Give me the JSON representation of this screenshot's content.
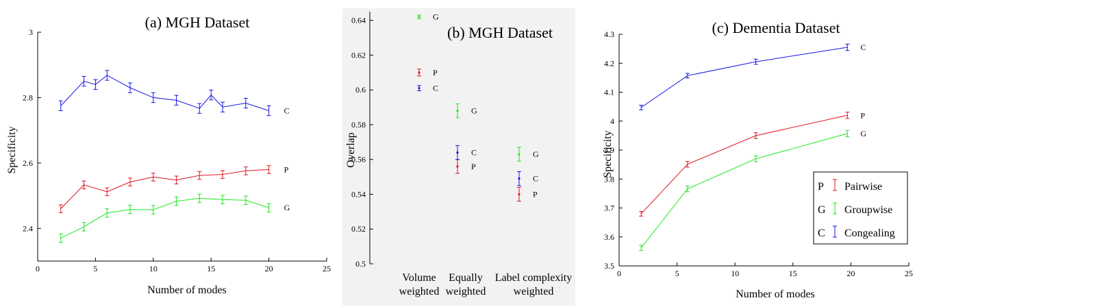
{
  "colors": {
    "P": "#e0141e",
    "G": "#1ee61e",
    "C": "#1414e6",
    "panel_b_background": "#f2f2f2"
  },
  "chart_data": [
    {
      "type": "line",
      "title": "(a)  MGH Dataset",
      "xlabel": "Number of modes",
      "ylabel": "Specificity",
      "xlim": [
        0,
        25
      ],
      "ylim": [
        2.3,
        3.0
      ],
      "xticks": [
        0,
        5,
        10,
        15,
        20,
        25
      ],
      "yticks": [
        2.4,
        2.6,
        2.8,
        3
      ],
      "xtick_labels": [
        "0",
        "5",
        "10",
        "15",
        "20",
        "25"
      ],
      "ytick_labels": [
        "2.4",
        "2.6",
        "2.8",
        "3"
      ],
      "grid": false,
      "series": [
        {
          "key": "C",
          "name": "C",
          "x": [
            2,
            4,
            5,
            6,
            8,
            10,
            12,
            14,
            15,
            16,
            18,
            20
          ],
          "y": [
            2.775,
            2.85,
            2.84,
            2.868,
            2.83,
            2.8,
            2.792,
            2.767,
            2.808,
            2.771,
            2.783,
            2.76
          ],
          "err": [
            0.015,
            0.015,
            0.015,
            0.015,
            0.015,
            0.015,
            0.015,
            0.015,
            0.015,
            0.015,
            0.015,
            0.015
          ]
        },
        {
          "key": "P",
          "name": "P",
          "x": [
            2,
            4,
            6,
            8,
            10,
            12,
            14,
            16,
            18,
            20
          ],
          "y": [
            2.46,
            2.533,
            2.512,
            2.542,
            2.557,
            2.548,
            2.562,
            2.565,
            2.576,
            2.58
          ],
          "err": [
            0.012,
            0.012,
            0.012,
            0.012,
            0.012,
            0.012,
            0.012,
            0.012,
            0.012,
            0.012
          ]
        },
        {
          "key": "G",
          "name": "G",
          "x": [
            2,
            4,
            6,
            8,
            10,
            12,
            14,
            16,
            18,
            20
          ],
          "y": [
            2.37,
            2.405,
            2.447,
            2.458,
            2.457,
            2.483,
            2.492,
            2.488,
            2.486,
            2.463
          ],
          "err": [
            0.013,
            0.013,
            0.013,
            0.013,
            0.013,
            0.013,
            0.013,
            0.013,
            0.013,
            0.013
          ]
        }
      ]
    },
    {
      "type": "scatter",
      "title": "(b)  MGH Dataset",
      "xlabel": "",
      "ylabel": "Overlap",
      "ylim": [
        0.5,
        0.645
      ],
      "yticks": [
        0.5,
        0.52,
        0.54,
        0.56,
        0.58,
        0.6,
        0.62,
        0.64
      ],
      "ytick_labels": [
        "0.5",
        "0.52",
        "0.54",
        "0.56",
        "0.58",
        "0.6",
        "0.62",
        "0.64"
      ],
      "categories": [
        [
          "Volume",
          "weighted"
        ],
        [
          "Equally",
          "weighted"
        ],
        [
          "Label complexity",
          "weighted"
        ]
      ],
      "grid": false,
      "series": [
        {
          "key": "G",
          "name": "G",
          "values": [
            0.642,
            0.588,
            0.563
          ],
          "err": [
            0.001,
            0.004,
            0.004
          ]
        },
        {
          "key": "P",
          "name": "P",
          "values": [
            0.61,
            0.556,
            0.54
          ],
          "err": [
            0.002,
            0.004,
            0.004
          ]
        },
        {
          "key": "C",
          "name": "C",
          "values": [
            0.601,
            0.564,
            0.549
          ],
          "err": [
            0.0015,
            0.004,
            0.004
          ]
        }
      ]
    },
    {
      "type": "line",
      "title": "(c)  Dementia Dataset",
      "xlabel": "Number of modes",
      "ylabel": "Specificity",
      "xlim": [
        0,
        25
      ],
      "ylim": [
        3.5,
        4.3
      ],
      "xticks": [
        0,
        5,
        10,
        15,
        20,
        25
      ],
      "yticks": [
        3.5,
        3.6,
        3.7,
        3.8,
        3.9,
        4.0,
        4.1,
        4.2,
        4.3
      ],
      "xtick_labels": [
        "0",
        "5",
        "10",
        "15",
        "20",
        "25"
      ],
      "ytick_labels": [
        "3.5",
        "3.6",
        "3.7",
        "3.8",
        "3.9",
        "4",
        "4.1",
        "4.2",
        "4.3"
      ],
      "grid": false,
      "legend": {
        "position": "bottom-right",
        "entries": [
          {
            "key": "P",
            "label": "Pairwise"
          },
          {
            "key": "G",
            "label": "Groupwise"
          },
          {
            "key": "C",
            "label": "Congealing"
          }
        ]
      },
      "series": [
        {
          "key": "C",
          "name": "C",
          "x": [
            1.9,
            5.9,
            11.8,
            19.7
          ],
          "y": [
            4.047,
            4.157,
            4.205,
            4.255
          ],
          "err": [
            0.008,
            0.008,
            0.009,
            0.011
          ]
        },
        {
          "key": "P",
          "name": "P",
          "x": [
            1.9,
            5.9,
            11.8,
            19.7
          ],
          "y": [
            3.68,
            3.851,
            3.95,
            4.02
          ],
          "err": [
            0.008,
            0.01,
            0.01,
            0.011
          ]
        },
        {
          "key": "G",
          "name": "G",
          "x": [
            1.9,
            5.9,
            11.8,
            19.7
          ],
          "y": [
            3.562,
            3.766,
            3.87,
            3.957
          ],
          "err": [
            0.009,
            0.01,
            0.01,
            0.011
          ]
        }
      ]
    }
  ]
}
